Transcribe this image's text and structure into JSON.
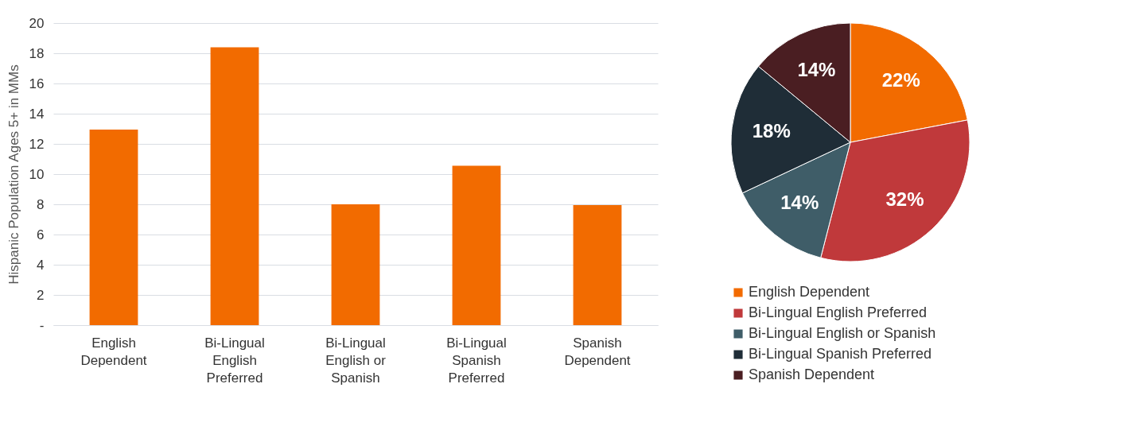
{
  "chart_data": [
    {
      "type": "bar",
      "ylabel": "Hispanic Population Ages 5+ in MMs",
      "categories": [
        "English Dependent",
        "Bi-Lingual English Preferred",
        "Bi-Lingual English or Spanish",
        "Bi-Lingual Spanish Preferred",
        "Spanish Dependent"
      ],
      "values": [
        12.95,
        18.4,
        8.0,
        10.55,
        7.95
      ],
      "color": "#f26b00",
      "ylim": [
        0,
        20
      ],
      "yticks": [
        {
          "value": 0,
          "label": "-"
        },
        2,
        4,
        6,
        8,
        10,
        12,
        14,
        16,
        18,
        20
      ],
      "grid": "y"
    },
    {
      "type": "pie",
      "categories": [
        "English Dependent",
        "Bi-Lingual English Preferred",
        "Bi-Lingual English or Spanish",
        "Bi-Lingual Spanish Preferred",
        "Spanish Dependent"
      ],
      "values": [
        22,
        32,
        14,
        18,
        14
      ],
      "value_labels": [
        "22%",
        "32%",
        "14%",
        "18%",
        "14%"
      ],
      "colors": [
        "#f26b00",
        "#c0393b",
        "#3f5d68",
        "#1f2d37",
        "#4a1e22"
      ],
      "legend": "bottom"
    }
  ]
}
